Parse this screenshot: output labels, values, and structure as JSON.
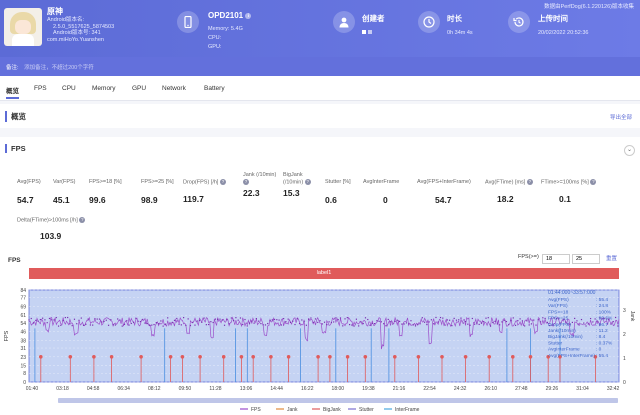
{
  "app": {
    "name": "原神",
    "info_lines": [
      "Android版本名:",
      "2.5.0_5517625_5874503",
      "Android版本号: 341",
      "com.miHoYo.Yuanshen"
    ],
    "colors": {
      "primary": "#5c6bd6",
      "fps": "#9b4dca",
      "stutter": "#e05b5b"
    }
  },
  "top_link": "数据由PerfDog(6.1.220126)版本收集",
  "device": {
    "name": "OPD2101",
    "memory": "Memory: 5.4G",
    "cpu": "CPU:",
    "gpu": "GPU:"
  },
  "creator": {
    "label": "创建者"
  },
  "duration": {
    "label": "时长",
    "value": "0h 34m 4s"
  },
  "upload": {
    "label": "上传时间",
    "value": "20/02/2022 20:52:36"
  },
  "note": {
    "label": "备注:",
    "placeholder": "添加备注，不超过200个字符"
  },
  "tabs": [
    "概览",
    "FPS",
    "CPU",
    "Memory",
    "GPU",
    "Network",
    "Battery"
  ],
  "overview": {
    "title": "概览",
    "export": "导出全部"
  },
  "fps_section": {
    "title": "FPS",
    "metrics": [
      {
        "label": "Avg(FPS)",
        "value": "54.7"
      },
      {
        "label": "Var(FPS)",
        "value": "45.1"
      },
      {
        "label": "FPS>=18 [%]",
        "value": "99.6"
      },
      {
        "label": "FPS>=25 [%]",
        "value": "98.9"
      },
      {
        "label": "Drop(FPS) [/h]",
        "value": "119.7"
      },
      {
        "label": "Jank (/10min)",
        "value": "22.3"
      },
      {
        "label": "BigJank (/10min)",
        "value": "15.3"
      },
      {
        "label": "Stutter [%]",
        "value": "0.6"
      },
      {
        "label": "AvgInterFrame",
        "value": "0"
      },
      {
        "label": "Avg(FPS+InterFrame)",
        "value": "54.7"
      },
      {
        "label": "Avg(FTime) [ms]",
        "value": "18.2"
      },
      {
        "label": "FTime>=100ms [%]",
        "value": "0.1"
      },
      {
        "label": "Delta(FTime)>100ms [/h]",
        "value": "103.9"
      }
    ]
  },
  "chart_controls": {
    "label": "FPS",
    "fps_ge": "FPS(>=)",
    "v1": "18",
    "v2": "25",
    "reset": "重置"
  },
  "chart_data": {
    "type": "line",
    "title": "label1",
    "ylabel": "FPS",
    "y2label": "Jank",
    "ylim": [
      0,
      84
    ],
    "y_ticks": [
      0,
      8,
      15,
      23,
      31,
      38,
      46,
      54,
      61,
      69,
      77,
      84
    ],
    "y2_ticks": [
      0,
      1,
      2,
      3
    ],
    "x_ticks": [
      "01:40",
      "03:18",
      "04:58",
      "06:34",
      "08:12",
      "09:50",
      "11:28",
      "13:06",
      "14:44",
      "16:22",
      "18:00",
      "19:38",
      "21:16",
      "22:54",
      "24:32",
      "26:10",
      "27:48",
      "29:26",
      "31:04",
      "32:42"
    ],
    "legend": [
      "FPS",
      "Jank",
      "BigJank",
      "Stutter",
      "InterFrame"
    ],
    "fps_baseline": 55,
    "fps_dips": [
      {
        "t": 0.03,
        "v": 45
      },
      {
        "t": 0.08,
        "v": 42
      },
      {
        "t": 0.21,
        "v": 40
      },
      {
        "t": 0.27,
        "v": 44
      },
      {
        "t": 0.31,
        "v": 38
      },
      {
        "t": 0.4,
        "v": 41
      },
      {
        "t": 0.47,
        "v": 37
      },
      {
        "t": 0.5,
        "v": 43
      },
      {
        "t": 0.6,
        "v": 30
      },
      {
        "t": 0.63,
        "v": 42
      },
      {
        "t": 0.68,
        "v": 34
      },
      {
        "t": 0.75,
        "v": 40
      },
      {
        "t": 0.8,
        "v": 45
      },
      {
        "t": 0.86,
        "v": 43
      },
      {
        "t": 0.92,
        "v": 41
      }
    ],
    "stutter_events": [
      0.01,
      0.23,
      0.35,
      0.37,
      0.46,
      0.52,
      0.58,
      0.61,
      0.81,
      0.85,
      0.9
    ],
    "jank_events": [
      0.02,
      0.07,
      0.11,
      0.14,
      0.19,
      0.24,
      0.26,
      0.29,
      0.33,
      0.36,
      0.38,
      0.41,
      0.44,
      0.49,
      0.51,
      0.54,
      0.57,
      0.62,
      0.66,
      0.7,
      0.74,
      0.78,
      0.82,
      0.85,
      0.88,
      0.9,
      0.96
    ],
    "tooltip": {
      "range": "01:44:000~33:57:000",
      "rows": [
        {
          "k": "Avg(FPS)",
          "v": "55.4"
        },
        {
          "k": "Var(FPS)",
          "v": "24.8"
        },
        {
          "k": "FPS>=18",
          "v": "100%"
        },
        {
          "k": "FPS>=25",
          "v": "99.6%"
        },
        {
          "k": "Drop(FPS)",
          "v": "96.7"
        },
        {
          "k": "Jank(/10min)",
          "v": "11.2"
        },
        {
          "k": "BigJank(/10min)",
          "v": "8.4"
        },
        {
          "k": "Stutter",
          "v": "0.37%"
        },
        {
          "k": "AvgInterFrame",
          "v": "0"
        },
        {
          "k": "Avg(FPS+InterFrame)",
          "v": "55.4"
        }
      ]
    }
  }
}
